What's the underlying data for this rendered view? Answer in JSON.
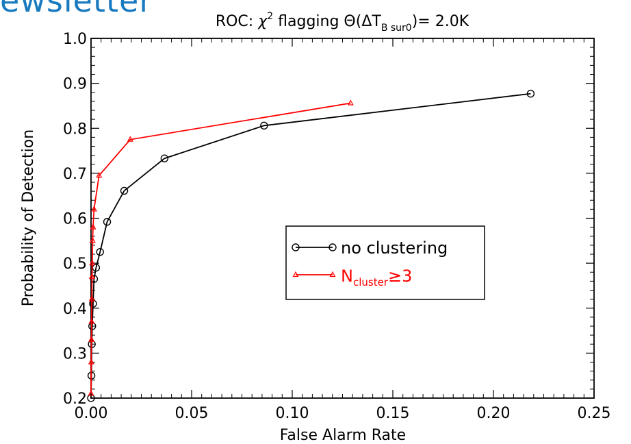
{
  "banner_text": "ewsletter",
  "chart_data": {
    "type": "line",
    "title": {
      "prefix": "ROC: ",
      "chi": "χ",
      "chi_sup": "2",
      "mid": " flagging   Θ(ΔT",
      "sub": "B sur0",
      "suffix": ")= 2.0K"
    },
    "xlabel": "False Alarm Rate",
    "ylabel": "Probability of Detection",
    "xlim": [
      0,
      0.25
    ],
    "ylim": [
      0.2,
      1.0
    ],
    "xticks": [
      0.0,
      0.05,
      0.1,
      0.15,
      0.2,
      0.25
    ],
    "xtick_labels": [
      "0.00",
      "0.05",
      "0.10",
      "0.15",
      "0.20",
      "0.25"
    ],
    "yticks": [
      0.2,
      0.3,
      0.4,
      0.5,
      0.6,
      0.7,
      0.8,
      0.9,
      1.0
    ],
    "ytick_labels": [
      "0.2",
      "0.3",
      "0.4",
      "0.5",
      "0.6",
      "0.7",
      "0.8",
      "0.9",
      "1.0"
    ],
    "legend_position": "center-right",
    "series": [
      {
        "name": "no clustering",
        "color": "#000000",
        "marker": "circle",
        "x": [
          0.0,
          0.0002,
          0.0004,
          0.0006,
          0.001,
          0.0015,
          0.0025,
          0.0045,
          0.008,
          0.0165,
          0.0365,
          0.086,
          0.2185
        ],
        "y": [
          0.2,
          0.25,
          0.32,
          0.36,
          0.41,
          0.465,
          0.49,
          0.525,
          0.592,
          0.661,
          0.733,
          0.806,
          0.877
        ]
      },
      {
        "name_main": "N",
        "name_sub": "cluster",
        "name_rest": "≥3",
        "color": "#ff0000",
        "marker": "triangle",
        "x": [
          0.0,
          0.0001,
          0.0002,
          0.0003,
          0.0004,
          0.0005,
          0.0006,
          0.0008,
          0.001,
          0.0015,
          0.004,
          0.0195,
          0.129
        ],
        "y": [
          0.21,
          0.28,
          0.33,
          0.37,
          0.42,
          0.47,
          0.5,
          0.55,
          0.58,
          0.62,
          0.695,
          0.775,
          0.856
        ]
      }
    ]
  }
}
